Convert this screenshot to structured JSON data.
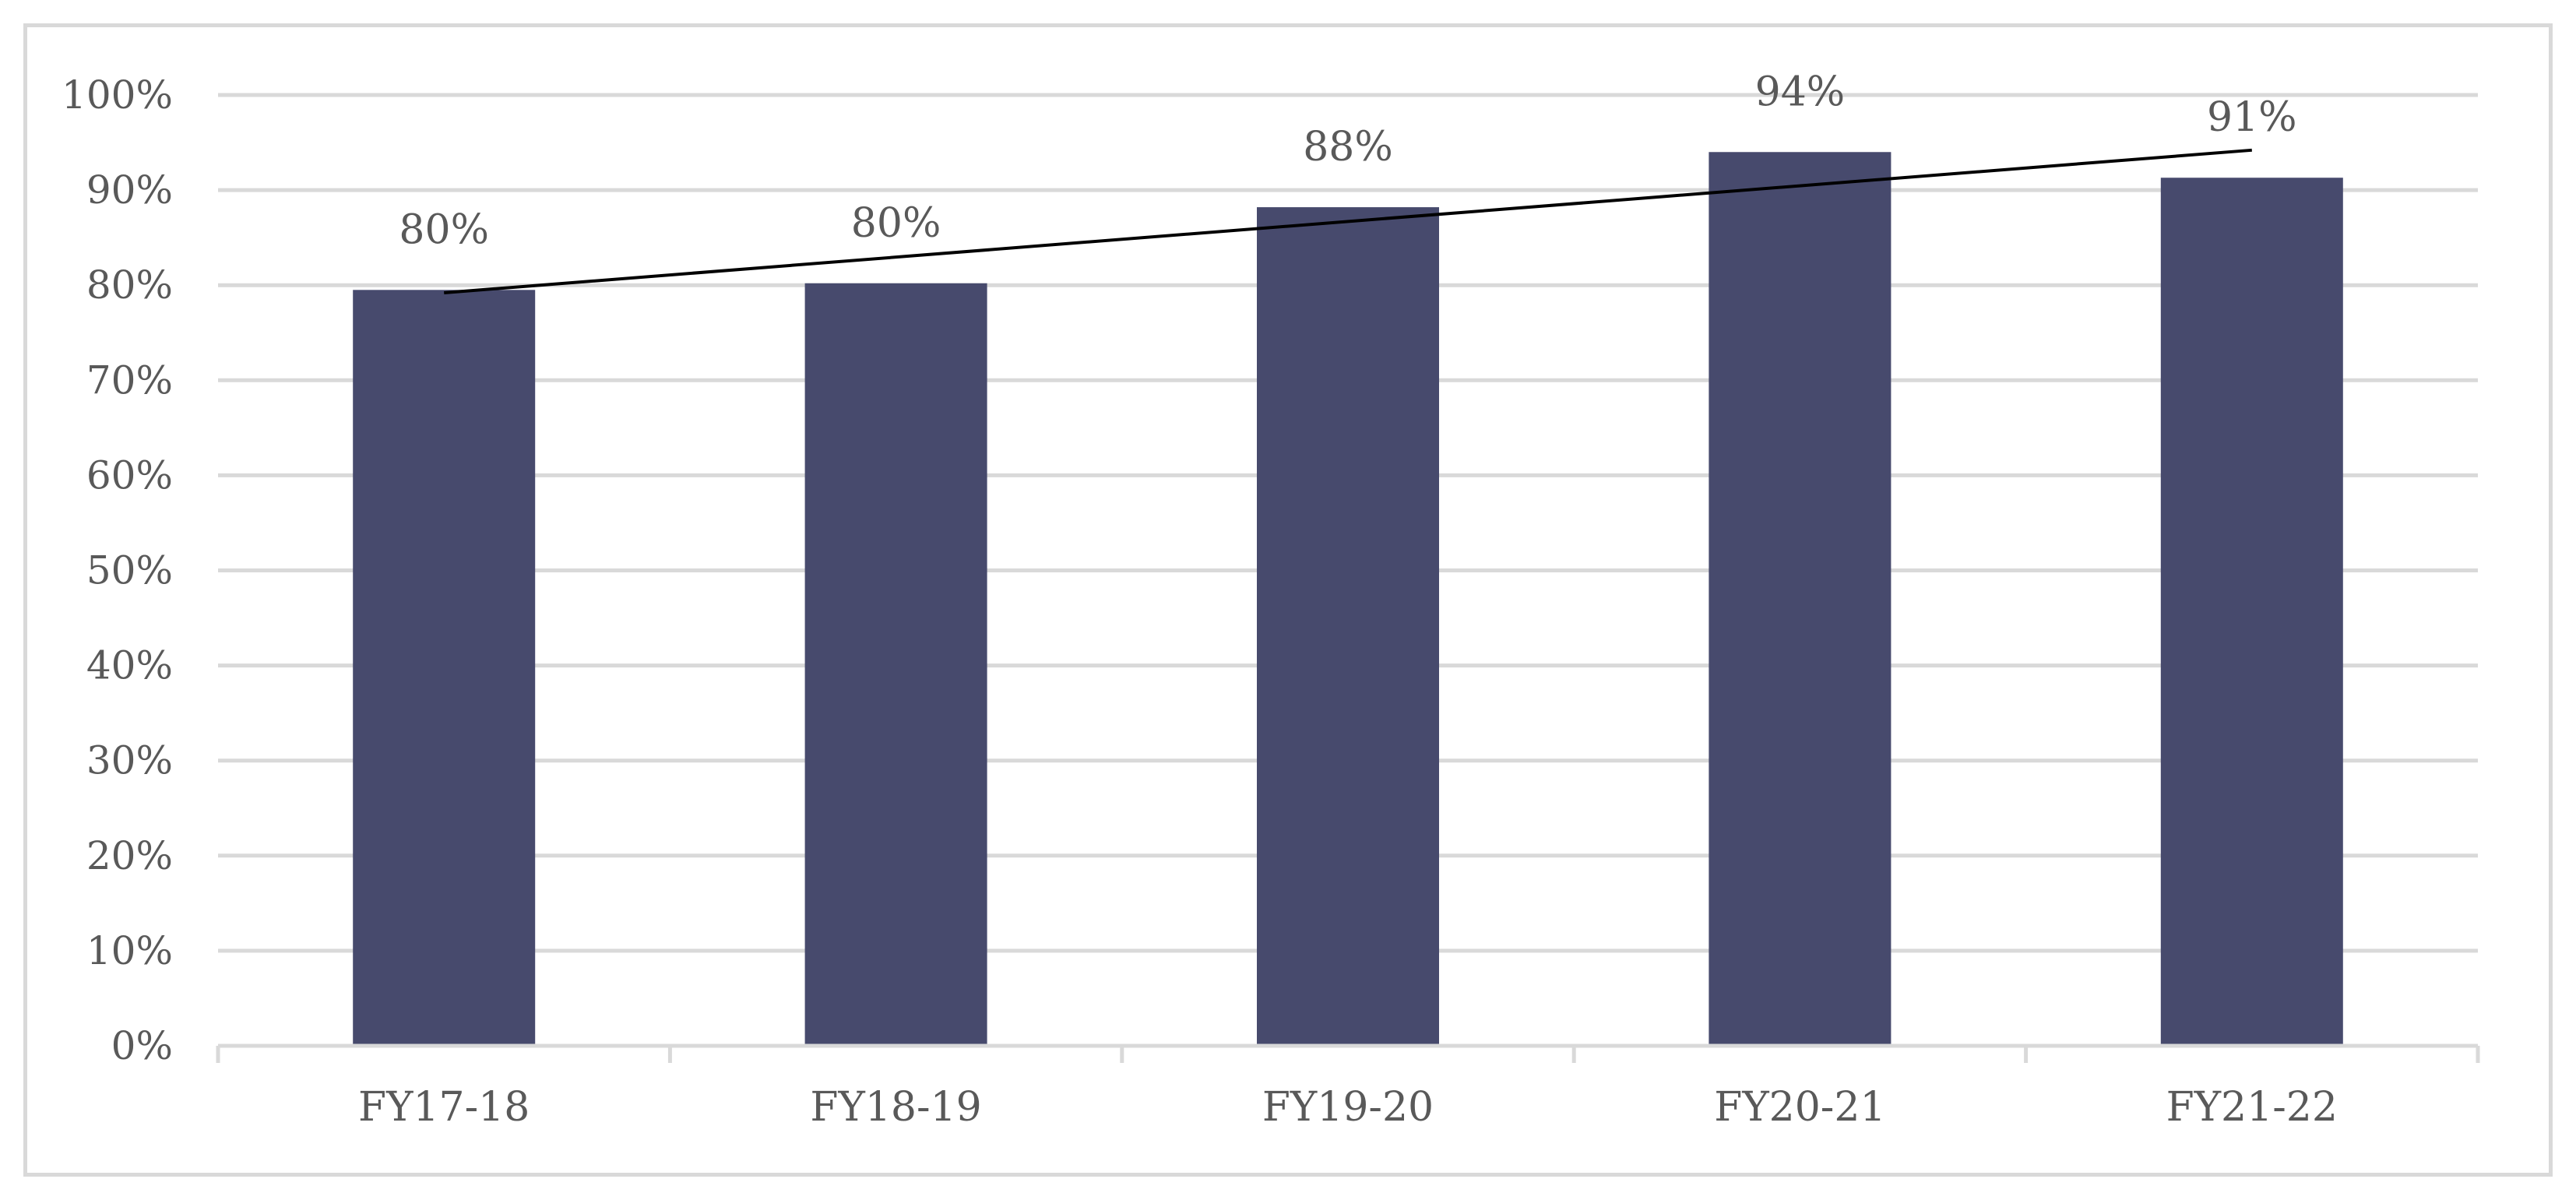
{
  "chart_data": {
    "type": "bar",
    "categories": [
      "FY17-18",
      "FY18-19",
      "FY19-20",
      "FY20-21",
      "FY21-22"
    ],
    "values": [
      79.5,
      80.2,
      88.2,
      94.0,
      91.3
    ],
    "data_labels": [
      "80%",
      "80%",
      "88%",
      "94%",
      "91%"
    ],
    "trendline": {
      "type": "linear",
      "start": 79.2,
      "end": 94.2
    },
    "ylim": [
      0,
      100
    ],
    "yticks": [
      0,
      10,
      20,
      30,
      40,
      50,
      60,
      70,
      80,
      90,
      100
    ],
    "ytick_labels": [
      "0%",
      "10%",
      "20%",
      "30%",
      "40%",
      "50%",
      "60%",
      "70%",
      "80%",
      "90%",
      "100%"
    ],
    "grid": true,
    "legend": "none",
    "colors": {
      "bar": "#474a6d",
      "trendline": "#000000",
      "grid": "#d9d9d9",
      "axis": "#d9d9d9",
      "text": "#595959"
    }
  }
}
